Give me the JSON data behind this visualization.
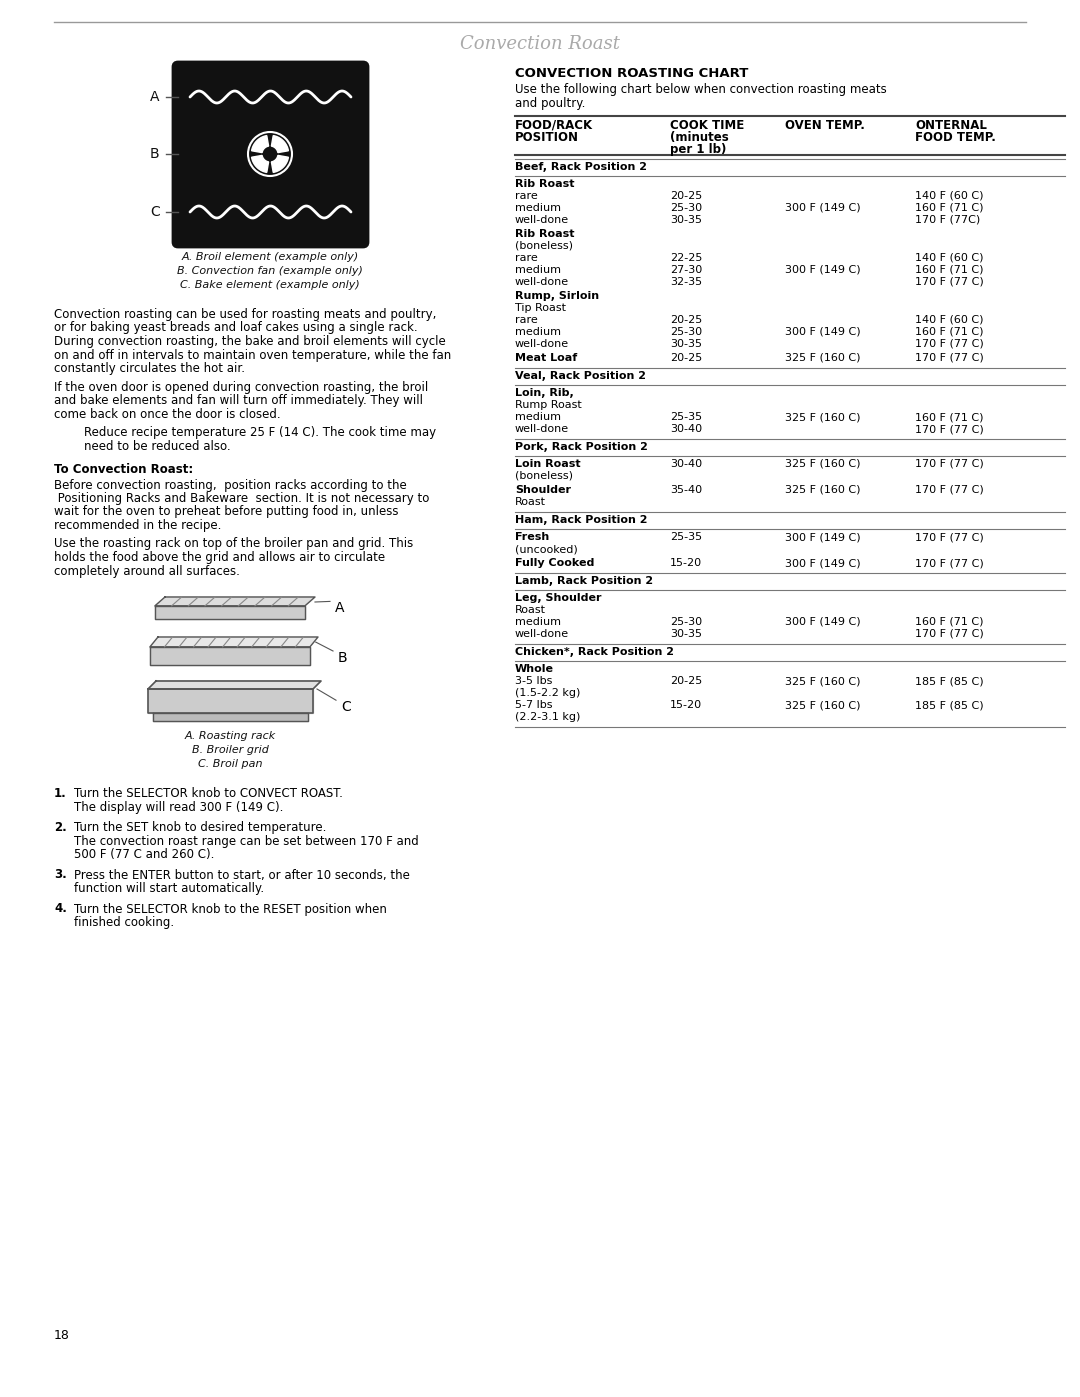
{
  "title": "Convection Roast",
  "page_number": "18",
  "bg_color": "#ffffff",
  "text_color": "#000000",
  "diagram1_captions": [
    "A. Broil element (example only)",
    "B. Convection fan (example only)",
    "C. Bake element (example only)"
  ],
  "diagram2_captions": [
    "A. Roasting rack",
    "B. Broiler grid",
    "C. Broil pan"
  ],
  "chart_title": "CONVECTION ROASTING CHART",
  "chart_subtitle1": "Use the following chart below when convection roasting meats",
  "chart_subtitle2": "and poultry.",
  "col_header1a": "FOOD/RACK",
  "col_header1b": "POSITION",
  "col_header2a": "COOK TIME",
  "col_header2b": "(minutes",
  "col_header2c": "per 1 lb)",
  "col_header3": "OVEN TEMP.",
  "col_header4a": "ONTERNAL",
  "col_header4b": "FOOD TEMP.",
  "left_para1": "Convection roasting can be used for roasting meats and poultry,\nor for baking yeast breads and loaf cakes using a single rack.\nDuring convection roasting, the bake and broil elements will cycle\non and off in intervals to maintain oven temperature, while the fan\nconstantly circulates the hot air.",
  "left_para2": "If the oven door is opened during convection roasting, the broil\nand bake elements and fan will turn off immediately. They will\ncome back on once the door is closed.",
  "left_para3a": "Reduce recipe temperature 25 F (14 C). The cook time may",
  "left_para3b": "need to be reduced also.",
  "left_heading": "To Convection Roast:",
  "left_para4": "Before convection roasting,  position racks according to the\n Positioning Racks and Bakeware  section. It is not necessary to\nwait for the oven to preheat before putting food in, unless\nrecommended in the recipe.",
  "left_para5": "Use the roasting rack on top of the broiler pan and grid. This\nholds the food above the grid and allows air to circulate\ncompletely around all surfaces.",
  "instr1a": "Turn the SELECTOR knob to CONVECT ROAST.",
  "instr1b": "The display will read 300 F (149 C).",
  "instr2a": "Turn the SET knob to desired temperature.",
  "instr2b": "The convection roast range can be set between 170 F and",
  "instr2c": "500 F (77 C and 260 C).",
  "instr3a": "Press the ENTER button to start, or after 10 seconds, the",
  "instr3b": "function will start automatically.",
  "instr4a": "Turn the SELECTOR knob to the RESET position when",
  "instr4b": "finished cooking.",
  "table_sections": [
    {
      "section": "Beef, Rack Position 2",
      "items": [
        {
          "food1": "Rib Roast",
          "food2": "",
          "sub": [
            {
              "name": "rare",
              "time": "20-25",
              "oven": "",
              "internal": "140 F (60 C)"
            },
            {
              "name": "medium",
              "time": "25-30",
              "oven": "300 F (149 C)",
              "internal": "160 F (71 C)"
            },
            {
              "name": "well-done",
              "time": "30-35",
              "oven": "",
              "internal": "170 F (77C)"
            }
          ]
        },
        {
          "food1": "Rib Roast",
          "food2": "(boneless)",
          "sub": [
            {
              "name": "rare",
              "time": "22-25",
              "oven": "",
              "internal": "140 F (60 C)"
            },
            {
              "name": "medium",
              "time": "27-30",
              "oven": "300 F (149 C)",
              "internal": "160 F (71 C)"
            },
            {
              "name": "well-done",
              "time": "32-35",
              "oven": "",
              "internal": "170 F (77 C)"
            }
          ]
        },
        {
          "food1": "Rump, Sirloin",
          "food2": "Tip Roast",
          "sub": [
            {
              "name": "rare",
              "time": "20-25",
              "oven": "",
              "internal": "140 F (60 C)"
            },
            {
              "name": "medium",
              "time": "25-30",
              "oven": "300 F (149 C)",
              "internal": "160 F (71 C)"
            },
            {
              "name": "well-done",
              "time": "30-35",
              "oven": "",
              "internal": "170 F (77 C)"
            }
          ]
        },
        {
          "food1": "Meat Loaf",
          "food2": "",
          "time": "20-25",
          "oven": "325 F (160 C)",
          "internal": "170 F (77 C)",
          "sub": []
        }
      ]
    },
    {
      "section": "Veal, Rack Position 2",
      "items": [
        {
          "food1": "Loin, Rib,",
          "food2": "Rump Roast",
          "sub": [
            {
              "name": "medium",
              "time": "25-35",
              "oven": "325 F (160 C)",
              "internal": "160 F (71 C)"
            },
            {
              "name": "well-done",
              "time": "30-40",
              "oven": "",
              "internal": "170 F (77 C)"
            }
          ]
        }
      ]
    },
    {
      "section": "Pork, Rack Position 2",
      "items": [
        {
          "food1": "Loin Roast",
          "food2": "(boneless)",
          "time": "30-40",
          "oven": "325 F (160 C)",
          "internal": "170 F (77 C)",
          "sub": []
        },
        {
          "food1": "Shoulder",
          "food2": "Roast",
          "time": "35-40",
          "oven": "325 F (160 C)",
          "internal": "170 F (77 C)",
          "sub": []
        }
      ]
    },
    {
      "section": "Ham, Rack Position 2",
      "items": [
        {
          "food1": "Fresh",
          "food2": "(uncooked)",
          "time": "25-35",
          "oven": "300 F (149 C)",
          "internal": "170 F (77 C)",
          "sub": []
        },
        {
          "food1": "Fully Cooked",
          "food2": "",
          "time": "15-20",
          "oven": "300 F (149 C)",
          "internal": "170 F (77 C)",
          "sub": []
        }
      ]
    },
    {
      "section": "Lamb, Rack Position 2",
      "items": [
        {
          "food1": "Leg, Shoulder",
          "food2": "Roast",
          "sub": [
            {
              "name": "medium",
              "time": "25-30",
              "oven": "300 F (149 C)",
              "internal": "160 F (71 C)"
            },
            {
              "name": "well-done",
              "time": "30-35",
              "oven": "",
              "internal": "170 F (77 C)"
            }
          ]
        }
      ]
    },
    {
      "section": "Chicken*, Rack Position 2",
      "items": [
        {
          "food1": "Whole",
          "food2": "",
          "sub": [
            {
              "name1": "3-5 lbs",
              "name2": "(1.5-2.2 kg)",
              "time": "20-25",
              "oven": "325 F (160 C)",
              "internal": "185 F (85 C)"
            },
            {
              "name1": "5-7 lbs",
              "name2": "(2.2-3.1 kg)",
              "time": "15-20",
              "oven": "325 F (160 C)",
              "internal": "185 F (85 C)"
            }
          ]
        }
      ]
    }
  ]
}
